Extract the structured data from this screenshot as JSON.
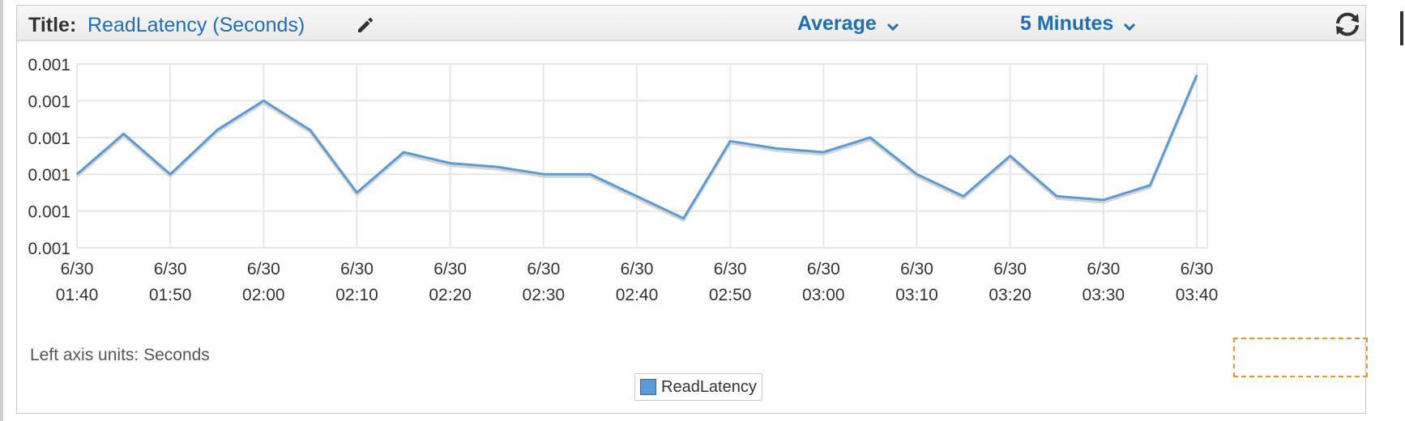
{
  "header": {
    "title_label": "Title:",
    "title_value": "ReadLatency (Seconds)",
    "statistic": "Average",
    "period": "5 Minutes",
    "icons": [
      "pencil-icon",
      "chevron-down-icon",
      "refresh-icon"
    ]
  },
  "footer": {
    "axis_units_label": "Left axis units:",
    "axis_units_value": "Seconds"
  },
  "colors": {
    "accent": "#1f6fb5",
    "series": "#5b9bd5",
    "selection": "#f0932b"
  },
  "chart_data": {
    "type": "line",
    "title": "ReadLatency (Seconds)",
    "ylabel": "",
    "xlabel": "",
    "y_tick_labels": [
      "0.001",
      "0.001",
      "0.001",
      "0.001",
      "0.001",
      "0.001"
    ],
    "y_ticks": [
      0.001,
      0.00101,
      0.00102,
      0.00103,
      0.00104,
      0.00105
    ],
    "ylim": [
      0.001,
      0.00105
    ],
    "x_ticks": [
      {
        "date": "6/30",
        "time": "01:40"
      },
      {
        "date": "6/30",
        "time": "01:50"
      },
      {
        "date": "6/30",
        "time": "02:00"
      },
      {
        "date": "6/30",
        "time": "02:10"
      },
      {
        "date": "6/30",
        "time": "02:20"
      },
      {
        "date": "6/30",
        "time": "02:30"
      },
      {
        "date": "6/30",
        "time": "02:40"
      },
      {
        "date": "6/30",
        "time": "02:50"
      },
      {
        "date": "6/30",
        "time": "03:00"
      },
      {
        "date": "6/30",
        "time": "03:10"
      },
      {
        "date": "6/30",
        "time": "03:20"
      },
      {
        "date": "6/30",
        "time": "03:30"
      },
      {
        "date": "6/30",
        "time": "03:40"
      }
    ],
    "grid": true,
    "legend": "bottom-center",
    "series": [
      {
        "name": "ReadLatency",
        "x": [
          "01:40",
          "01:45",
          "01:50",
          "01:55",
          "02:00",
          "02:05",
          "02:10",
          "02:15",
          "02:20",
          "02:25",
          "02:30",
          "02:35",
          "02:40",
          "02:45",
          "02:50",
          "02:55",
          "03:00",
          "03:05",
          "03:10",
          "03:15",
          "03:20",
          "03:25",
          "03:30",
          "03:35",
          "03:40"
        ],
        "values": [
          0.00102,
          0.001031,
          0.00102,
          0.001032,
          0.00104,
          0.001032,
          0.001015,
          0.001026,
          0.001023,
          0.001022,
          0.00102,
          0.00102,
          0.001014,
          0.001008,
          0.001029,
          0.001027,
          0.001026,
          0.00103,
          0.00102,
          0.001014,
          0.001025,
          0.001014,
          0.001013,
          0.001017,
          0.001047
        ]
      }
    ]
  }
}
